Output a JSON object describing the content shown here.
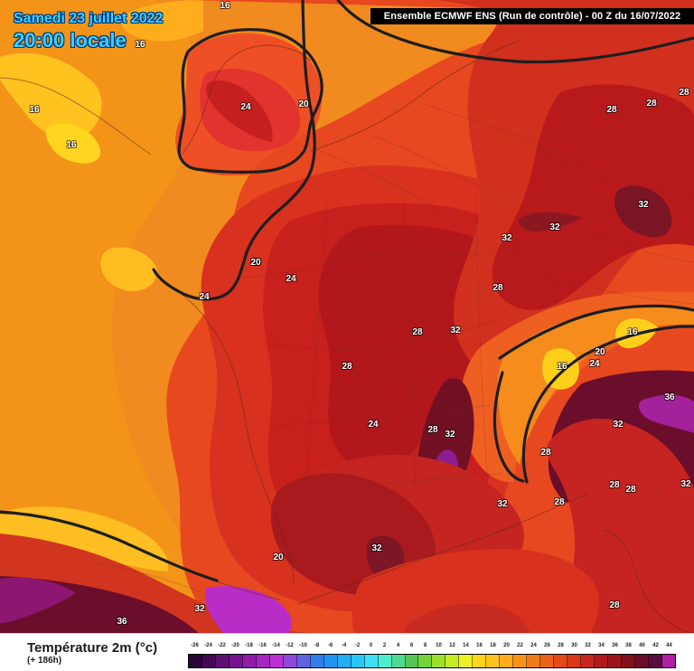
{
  "header": {
    "date": "Samedi 23 juillet 2022",
    "time": "20:00 locale",
    "run": "Ensemble ECMWF ENS  (Run de contrôle)  -  00 Z du 16/07/2022"
  },
  "legend": {
    "title": "Température 2m (°c)",
    "subtitle": "(+ 186h)",
    "ticks": [
      "-26",
      "-24",
      "-22",
      "-20",
      "-18",
      "-16",
      "-14",
      "-12",
      "-10",
      "-8",
      "-6",
      "-4",
      "-2",
      "0",
      "2",
      "4",
      "6",
      "8",
      "10",
      "12",
      "14",
      "16",
      "18",
      "20",
      "22",
      "24",
      "26",
      "28",
      "30",
      "32",
      "34",
      "36",
      "38",
      "40",
      "42",
      "44"
    ],
    "colors": [
      "#2b0638",
      "#420a53",
      "#5d0f72",
      "#76128e",
      "#8e1ca7",
      "#a626bf",
      "#ba31d2",
      "#8e49db",
      "#5f63e2",
      "#2f7eea",
      "#2095f0",
      "#22aef4",
      "#29c7f6",
      "#3ddff5",
      "#4ceecf",
      "#4fd88f",
      "#55c653",
      "#74d43b",
      "#9ddf2d",
      "#c7ea27",
      "#eef028",
      "#ffd51f",
      "#ffc21f",
      "#ffab1c",
      "#f8931a",
      "#ef7b18",
      "#e96217",
      "#e34a17",
      "#d93718",
      "#c9251a",
      "#b5181c",
      "#9c141b",
      "#82101d",
      "#6a0d2a",
      "#5a0c42",
      "#ae1fa3"
    ]
  },
  "temperature_labels": [
    {
      "text": "16"
    },
    {
      "text": "16"
    },
    {
      "text": "16"
    },
    {
      "text": "16"
    },
    {
      "text": "24"
    },
    {
      "text": "20"
    },
    {
      "text": "20"
    },
    {
      "text": "28"
    },
    {
      "text": "28"
    },
    {
      "text": "28"
    },
    {
      "text": "32"
    },
    {
      "text": "32"
    },
    {
      "text": "32"
    },
    {
      "text": "20"
    },
    {
      "text": "24"
    },
    {
      "text": "24"
    },
    {
      "text": "28"
    },
    {
      "text": "28"
    },
    {
      "text": "32"
    },
    {
      "text": "28"
    },
    {
      "text": "16"
    },
    {
      "text": "20"
    },
    {
      "text": "16"
    },
    {
      "text": "24"
    },
    {
      "text": "36"
    },
    {
      "text": "32"
    },
    {
      "text": "24"
    },
    {
      "text": "28"
    },
    {
      "text": "32"
    },
    {
      "text": "28"
    },
    {
      "text": "28"
    },
    {
      "text": "28"
    },
    {
      "text": "32"
    },
    {
      "text": "32"
    },
    {
      "text": "28"
    },
    {
      "text": "20"
    },
    {
      "text": "32"
    },
    {
      "text": "36"
    },
    {
      "text": "28"
    },
    {
      "text": "32"
    }
  ]
}
